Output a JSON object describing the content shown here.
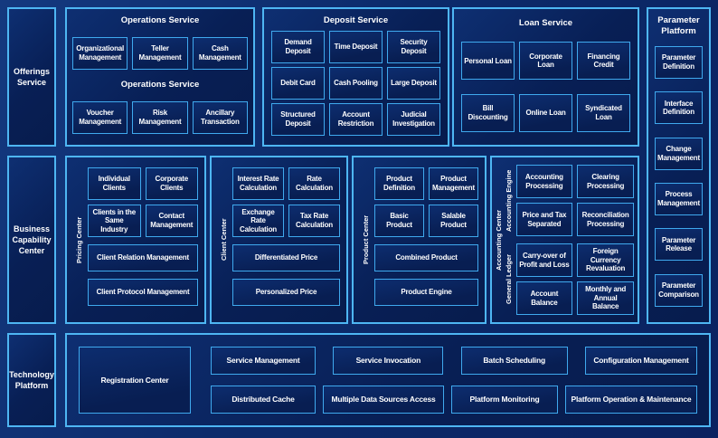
{
  "palette": {
    "page_bg": "#0c2b6b",
    "panel_bg": "#081f55",
    "box_bg": "#081e52",
    "border_blue": "#4eb6f3",
    "text": "#ffffff"
  },
  "sidebar": {
    "offerings": "Offerings Service",
    "business_capability": "Business Capability Center",
    "technology": "Technology Platform"
  },
  "operations": {
    "title": "Operations Service",
    "mid_label": "Operations Service",
    "row1": [
      "Organizational Management",
      "Teller Management",
      "Cash Management"
    ],
    "row2": [
      "Voucher Management",
      "Risk Management",
      "Ancillary Transaction"
    ]
  },
  "deposit": {
    "title": "Deposit Service",
    "row1": [
      "Demand Deposit",
      "Time Deposit",
      "Security Deposit"
    ],
    "row2": [
      "Debit Card",
      "Cash Pooling",
      "Large Deposit"
    ],
    "row3": [
      "Structured Deposit",
      "Account Restriction",
      "Judicial Investigation"
    ]
  },
  "loan": {
    "title": "Loan Service",
    "row1": [
      "Personal Loan",
      "Corporate Loan",
      "Financing Credit"
    ],
    "row2": [
      "Bill Discounting",
      "Online Loan",
      "Syndicated Loan"
    ]
  },
  "parameter_platform": {
    "title": "Parameter Platform",
    "boxes": [
      "Parameter Definition",
      "Interface Definition",
      "Change Management",
      "Process Management",
      "Parameter Release",
      "Parameter Comparison"
    ]
  },
  "pricing_center": {
    "label": "Pricing Center",
    "small": [
      "Individual Clients",
      "Corporate Clients",
      "Clients in the Same Industry",
      "Contact Management"
    ],
    "wide": [
      "Client Relation Management",
      "Client Protocol Management"
    ]
  },
  "client_center": {
    "label": "Client Center",
    "small": [
      "Interest Rate Calculation",
      "Rate Calculation",
      "Exchange Rate Calculation",
      "Tax Rate Calculation"
    ],
    "wide": [
      "Differentiated Price",
      "Personalized Price"
    ]
  },
  "product_center": {
    "label": "Product Center",
    "small": [
      "Product Definition",
      "Product Management",
      "Basic Product",
      "Salable Product"
    ],
    "wide": [
      "Combined Product",
      "Product Engine"
    ]
  },
  "accounting_center": {
    "label": "Accounting Center",
    "groups": [
      {
        "label": "Accounting Engine",
        "boxes": [
          "Accounting Processing",
          "Clearing Processing",
          "Price and Tax Separated",
          "Reconciliation Processing"
        ]
      },
      {
        "label": "General Ledger",
        "boxes": [
          "Carry-over of Profit and Loss",
          "Foreign Currency Revaluation",
          "Account Balance",
          "Monthly and Annual Balance"
        ]
      }
    ]
  },
  "technology_platform": {
    "registration": "Registration Center",
    "row1": [
      "Service Management",
      "Service Invocation",
      "Batch Scheduling",
      "Configuration Management"
    ],
    "row2": [
      "Distributed Cache",
      "Multiple Data Sources Access",
      "Platform Monitoring",
      "Platform Operation & Maintenance"
    ]
  }
}
